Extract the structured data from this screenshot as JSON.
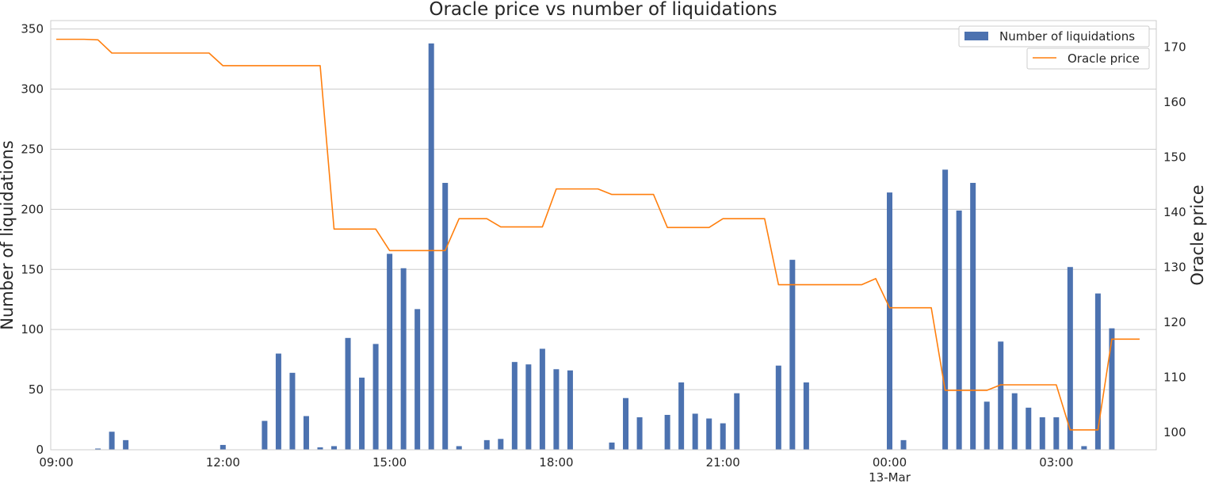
{
  "chart_data": {
    "type": "bar",
    "title": "Oracle price vs number of liquidations",
    "xlabel": "",
    "ylabel": "Number of liquidations",
    "y2label": "Oracle price",
    "ylim": [
      0,
      357
    ],
    "y2lim": [
      96.8,
      174.8
    ],
    "yticks": [
      0,
      50,
      100,
      150,
      200,
      250,
      300,
      350
    ],
    "y2ticks": [
      100,
      110,
      120,
      130,
      140,
      150,
      160,
      170
    ],
    "grid": true,
    "xlim_hours": [
      8.9,
      28.8
    ],
    "xticks": [
      {
        "hour": 9,
        "label": "09:00",
        "sublabel": ""
      },
      {
        "hour": 12,
        "label": "12:00",
        "sublabel": ""
      },
      {
        "hour": 15,
        "label": "15:00",
        "sublabel": ""
      },
      {
        "hour": 18,
        "label": "18:00",
        "sublabel": ""
      },
      {
        "hour": 21,
        "label": "21:00",
        "sublabel": ""
      },
      {
        "hour": 24,
        "label": "00:00",
        "sublabel": "13-Mar"
      },
      {
        "hour": 27,
        "label": "03:00",
        "sublabel": ""
      }
    ],
    "series": [
      {
        "name": "Number of liquidations",
        "kind": "bar",
        "axis": "left",
        "color": "#4c72b0",
        "x_hours": [
          9.75,
          10.0,
          10.25,
          12.0,
          12.75,
          13.0,
          13.25,
          13.5,
          13.75,
          14.0,
          14.25,
          14.5,
          14.75,
          15.0,
          15.25,
          15.5,
          15.75,
          16.0,
          16.25,
          16.75,
          17.0,
          17.25,
          17.5,
          17.75,
          18.0,
          18.25,
          19.0,
          19.25,
          19.5,
          20.0,
          20.25,
          20.5,
          20.75,
          21.0,
          21.25,
          22.0,
          22.25,
          22.5,
          24.0,
          24.25,
          25.0,
          25.25,
          25.5,
          25.75,
          26.0,
          26.25,
          26.5,
          26.75,
          27.0,
          27.25,
          27.5,
          27.75,
          28.0
        ],
        "values": [
          1,
          15,
          8,
          4,
          24,
          80,
          64,
          28,
          2,
          3,
          93,
          60,
          88,
          163,
          151,
          117,
          338,
          222,
          3,
          8,
          9,
          73,
          71,
          84,
          67,
          66,
          6,
          43,
          27,
          29,
          56,
          30,
          26,
          22,
          47,
          70,
          158,
          56,
          214,
          8,
          233,
          199,
          222,
          40,
          90,
          47,
          35,
          27,
          27,
          152,
          3,
          130,
          101
        ]
      },
      {
        "name": "Oracle price",
        "kind": "line",
        "axis": "right",
        "color": "#ff7f0e",
        "x_hours": [
          9.0,
          9.5,
          9.75,
          10.0,
          10.5,
          11.0,
          11.5,
          11.75,
          12.0,
          12.5,
          13.0,
          13.5,
          13.75,
          14.0,
          14.5,
          14.75,
          15.0,
          15.5,
          16.0,
          16.25,
          16.5,
          16.75,
          17.0,
          17.5,
          17.75,
          18.0,
          18.5,
          18.75,
          19.0,
          19.5,
          19.75,
          20.0,
          20.5,
          20.75,
          21.0,
          21.5,
          21.75,
          22.0,
          22.5,
          23.0,
          23.5,
          23.75,
          24.0,
          24.5,
          24.75,
          25.0,
          25.5,
          25.75,
          26.0,
          26.5,
          26.75,
          27.0,
          27.25,
          27.5,
          27.75,
          28.0,
          28.5
        ],
        "values": [
          171.4,
          171.4,
          171.3,
          168.9,
          168.9,
          168.9,
          168.9,
          168.9,
          166.6,
          166.6,
          166.6,
          166.6,
          166.6,
          136.9,
          136.9,
          136.9,
          133.0,
          133.0,
          133.0,
          138.8,
          138.8,
          138.8,
          137.3,
          137.3,
          137.3,
          144.2,
          144.2,
          144.2,
          143.2,
          143.2,
          143.2,
          137.2,
          137.2,
          137.2,
          138.8,
          138.8,
          138.8,
          126.8,
          126.8,
          126.8,
          126.8,
          127.9,
          122.6,
          122.6,
          122.6,
          107.6,
          107.6,
          107.6,
          108.6,
          108.6,
          108.6,
          108.6,
          100.4,
          100.4,
          100.4,
          116.9,
          116.9
        ]
      }
    ],
    "legend": {
      "placement": "top-right",
      "entries": [
        "Number of liquidations",
        "Oracle price"
      ]
    }
  }
}
